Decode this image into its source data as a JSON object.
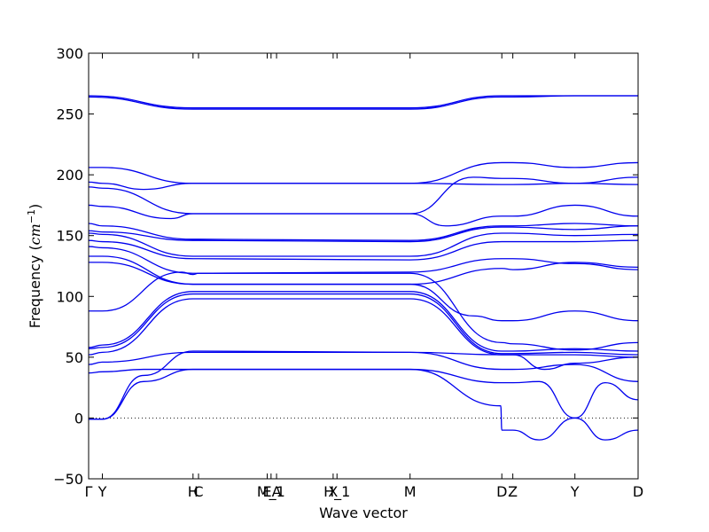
{
  "chart_data": {
    "type": "line",
    "title": "",
    "xlabel": "Wave vector",
    "ylabel_prefix": "Frequency (",
    "ylabel_unit": "cm",
    "ylabel_exponent": "−1",
    "ylabel_suffix": ")",
    "ylim": [
      -50,
      300
    ],
    "xlim": [
      0,
      1
    ],
    "yticks": [
      "−50",
      "0",
      "50",
      "100",
      "150",
      "200",
      "250",
      "300"
    ],
    "ytick_values": [
      -50,
      0,
      50,
      100,
      150,
      200,
      250,
      300
    ],
    "grid": false,
    "zero_line": true,
    "band_color": "#0000ee",
    "high_symmetry_points": [
      {
        "label": "Γ",
        "x": 0.0
      },
      {
        "label": "Y",
        "x": 0.025
      },
      {
        "label": "H",
        "x": 0.19
      },
      {
        "label": "C",
        "x": 0.2
      },
      {
        "label": "E",
        "x": 0.325
      },
      {
        "label": "M_1",
        "x": 0.332
      },
      {
        "label": "A",
        "x": 0.342
      },
      {
        "label": "X",
        "x": 0.445
      },
      {
        "label": "H_1",
        "x": 0.452
      },
      {
        "label": "M",
        "x": 0.585
      },
      {
        "label": "D",
        "x": 0.752
      },
      {
        "label": "Z",
        "x": 0.772
      },
      {
        "label": "Y",
        "x": 0.885
      },
      {
        "label": "D",
        "x": 1.0
      }
    ],
    "series": [
      {
        "x": [
          0,
          0.19,
          0.2,
          0.585,
          0.752,
          0.772,
          0.885,
          1.0
        ],
        "values": [
          265,
          255,
          255,
          255,
          265,
          265,
          265,
          265
        ]
      },
      {
        "x": [
          0,
          0.19,
          0.2,
          0.585,
          0.752,
          0.772,
          0.885,
          1.0
        ],
        "values": [
          264,
          254,
          254,
          254,
          264,
          264,
          265,
          265
        ]
      },
      {
        "x": [
          0,
          0.025,
          0.19,
          0.2,
          0.585,
          0.752,
          0.772,
          0.885,
          1.0
        ],
        "values": [
          206,
          206,
          193,
          193,
          193,
          210,
          210,
          206,
          210
        ]
      },
      {
        "x": [
          0,
          0.025,
          0.1,
          0.19,
          0.2,
          0.585,
          0.752,
          0.772,
          0.885,
          1.0
        ],
        "values": [
          194,
          193,
          188,
          193,
          193,
          193,
          192,
          192,
          193,
          192
        ]
      },
      {
        "x": [
          0,
          0.025,
          0.19,
          0.2,
          0.585,
          0.7,
          0.752,
          0.772,
          0.885,
          1.0
        ],
        "values": [
          190,
          189,
          168,
          168,
          168,
          198,
          197,
          197,
          193,
          198
        ]
      },
      {
        "x": [
          0,
          0.025,
          0.15,
          0.19,
          0.2,
          0.585,
          0.65,
          0.752,
          0.772,
          0.885,
          1.0
        ],
        "values": [
          175,
          174,
          164,
          168,
          168,
          168,
          158,
          166,
          166,
          175,
          166
        ]
      },
      {
        "x": [
          0,
          0.025,
          0.19,
          0.2,
          0.585,
          0.752,
          0.772,
          0.885,
          1.0
        ],
        "values": [
          160,
          158,
          147,
          147,
          146,
          158,
          158,
          160,
          158
        ]
      },
      {
        "x": [
          0,
          0.025,
          0.19,
          0.2,
          0.585,
          0.752,
          0.772,
          0.885,
          1.0
        ],
        "values": [
          154,
          153,
          146,
          146,
          145,
          157,
          157,
          155,
          158
        ]
      },
      {
        "x": [
          0,
          0.025,
          0.19,
          0.2,
          0.585,
          0.752,
          0.772,
          0.885,
          1.0
        ],
        "values": [
          152,
          151,
          133,
          133,
          133,
          152,
          152,
          150,
          151
        ]
      },
      {
        "x": [
          0,
          0.025,
          0.19,
          0.2,
          0.585,
          0.752,
          0.772,
          0.885,
          1.0
        ],
        "values": [
          146,
          145,
          131,
          131,
          130,
          145,
          145,
          145,
          146
        ]
      },
      {
        "x": [
          0,
          0.025,
          0.19,
          0.2,
          0.585,
          0.752,
          0.772,
          0.885,
          1.0
        ],
        "values": [
          141,
          140,
          119,
          119,
          120,
          131,
          131,
          127,
          122
        ]
      },
      {
        "x": [
          0,
          0.025,
          0.19,
          0.2,
          0.585,
          0.752,
          0.772,
          0.885,
          1.0
        ],
        "values": [
          133,
          133,
          110,
          110,
          110,
          123,
          122,
          128,
          124
        ]
      },
      {
        "x": [
          0,
          0.025,
          0.19,
          0.2,
          0.585,
          0.7,
          0.752,
          0.772,
          0.885,
          1.0
        ],
        "values": [
          128,
          128,
          110,
          110,
          110,
          84,
          80,
          80,
          88,
          80
        ]
      },
      {
        "x": [
          0,
          0.025,
          0.17,
          0.19,
          0.2,
          0.585,
          0.752,
          0.772,
          0.885,
          1.0
        ],
        "values": [
          88,
          88,
          120,
          118,
          119,
          119,
          62,
          61,
          56,
          62
        ]
      },
      {
        "x": [
          0,
          0.025,
          0.19,
          0.2,
          0.585,
          0.752,
          0.772,
          0.885,
          1.0
        ],
        "values": [
          58,
          60,
          104,
          104,
          104,
          55,
          55,
          57,
          55
        ]
      },
      {
        "x": [
          0,
          0.025,
          0.19,
          0.2,
          0.585,
          0.752,
          0.772,
          0.885,
          1.0
        ],
        "values": [
          57,
          58,
          102,
          102,
          102,
          53,
          53,
          54,
          52
        ]
      },
      {
        "x": [
          0,
          0.025,
          0.19,
          0.2,
          0.585,
          0.752,
          0.772,
          0.83,
          0.885,
          1.0
        ],
        "values": [
          52,
          54,
          98,
          98,
          98,
          52,
          52,
          40,
          45,
          50
        ]
      },
      {
        "x": [
          0,
          0.025,
          0.19,
          0.2,
          0.585,
          0.752,
          0.772,
          0.885,
          1.0
        ],
        "values": [
          44,
          46,
          54,
          54,
          54,
          40,
          40,
          44,
          30
        ]
      },
      {
        "x": [
          0,
          0.025,
          0.1,
          0.19,
          0.2,
          0.585,
          0.752,
          0.772,
          0.82,
          0.885,
          0.94,
          1.0
        ],
        "values": [
          37,
          38,
          40,
          40,
          40,
          40,
          29,
          29,
          30,
          0,
          29,
          15
        ]
      },
      {
        "x": [
          0,
          0.025,
          0.1,
          0.19,
          0.2,
          0.585,
          0.75,
          0.752,
          0.772,
          0.82,
          0.885,
          0.94,
          1.0
        ],
        "values": [
          -1,
          -1,
          30,
          40,
          40,
          40,
          10,
          -10,
          -10,
          -18,
          0,
          -18,
          -10
        ]
      },
      {
        "x": [
          0,
          0.025,
          0.1,
          0.19,
          0.2,
          0.585,
          0.752,
          0.772,
          0.885,
          1.0
        ],
        "values": [
          -1,
          -1,
          35,
          55,
          55,
          54,
          52,
          52,
          52,
          50
        ]
      }
    ]
  }
}
